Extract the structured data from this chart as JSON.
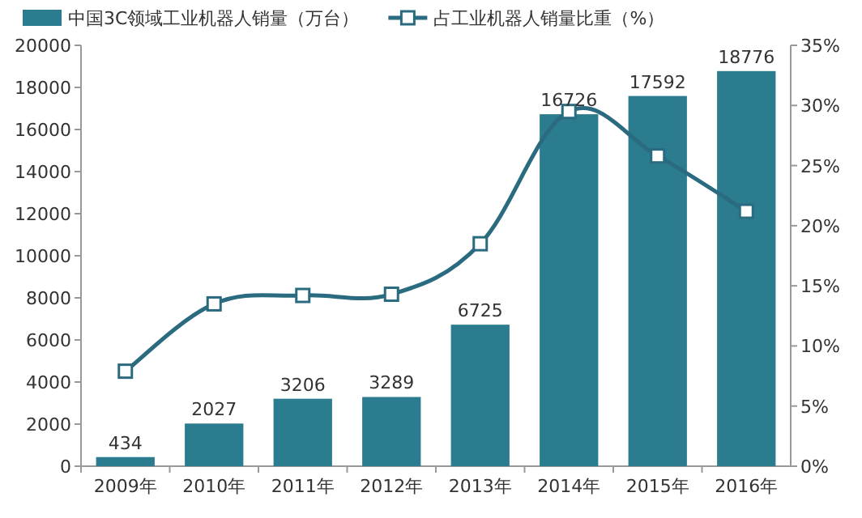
{
  "chart_data": {
    "type": "bar",
    "categories": [
      "2009年",
      "2010年",
      "2011年",
      "2012年",
      "2013年",
      "2014年",
      "2015年",
      "2016年"
    ],
    "series": [
      {
        "name": "中国3C领域工业机器人销量（万台）",
        "color": "#2b7c8f",
        "values": [
          434,
          2027,
          3206,
          3289,
          6725,
          16726,
          17592,
          18776
        ],
        "value_labels": [
          "434",
          "2027",
          "3206",
          "3289",
          "6725",
          "16726",
          "17592",
          "18776"
        ]
      },
      {
        "name": "占工业机器人销量比重（%）",
        "type": "line",
        "axis": "y2",
        "color": "#2a6b80",
        "marker": "square",
        "values": [
          7.9,
          13.5,
          14.2,
          14.3,
          18.5,
          29.5,
          25.8,
          21.2
        ]
      }
    ],
    "ylim": [
      0,
      20000
    ],
    "yticks": [
      0,
      2000,
      4000,
      6000,
      8000,
      10000,
      12000,
      14000,
      16000,
      18000,
      20000
    ],
    "y2lim": [
      0,
      35
    ],
    "y2ticks": [
      {
        "value": 0,
        "label": "0%"
      },
      {
        "value": 5,
        "label": "5%"
      },
      {
        "value": 10,
        "label": "10%"
      },
      {
        "value": 15,
        "label": "15%"
      },
      {
        "value": 20,
        "label": "20%"
      },
      {
        "value": 25,
        "label": "25%"
      },
      {
        "value": 30,
        "label": "30%"
      },
      {
        "value": 35,
        "label": "35%"
      }
    ],
    "grid": false,
    "legend": "top"
  }
}
